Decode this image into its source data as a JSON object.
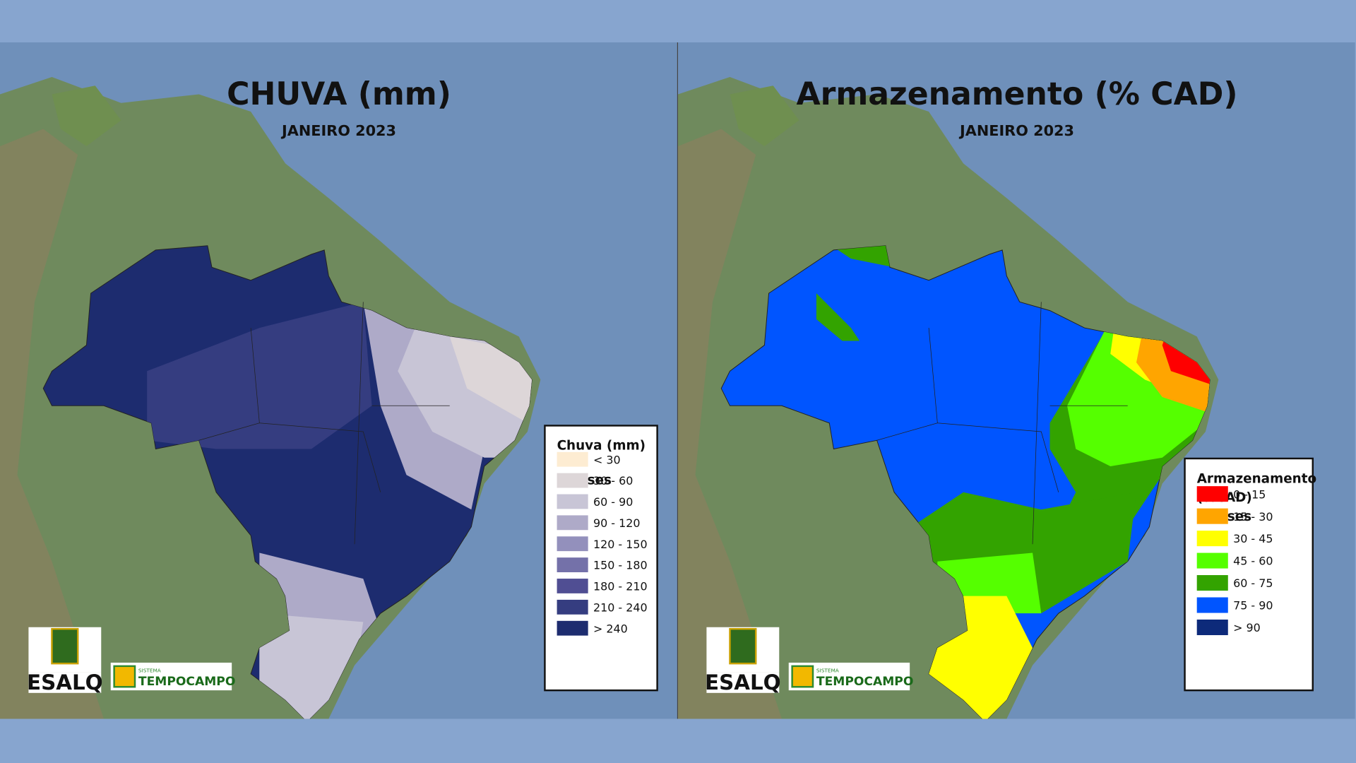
{
  "panels": [
    {
      "title": "CHUVA (mm)",
      "subtitle": "JANEIRO 2023",
      "legend": {
        "title": "Chuva (mm)",
        "subtitle": "Classes",
        "items": [
          {
            "label": "< 30",
            "color": "#fdecd2"
          },
          {
            "label": "30 - 60",
            "color": "#ddd6d8"
          },
          {
            "label": "60 - 90",
            "color": "#c8c5d6"
          },
          {
            "label": "90 - 120",
            "color": "#aeaac8"
          },
          {
            "label": "120 - 150",
            "color": "#9390bc"
          },
          {
            "label": "150 - 180",
            "color": "#7471a9"
          },
          {
            "label": "180 - 210",
            "color": "#504e93"
          },
          {
            "label": "210 - 240",
            "color": "#353d80"
          },
          {
            "label": "> 240",
            "color": "#1d2c6f"
          }
        ]
      }
    },
    {
      "title": "Armazenamento (% CAD)",
      "subtitle": "JANEIRO 2023",
      "legend": {
        "title": "Armazenamento (%CAD)",
        "subtitle": "Classes",
        "items": [
          {
            "label": "0 - 15",
            "color": "#ff0000"
          },
          {
            "label": "15 - 30",
            "color": "#ffa500"
          },
          {
            "label": "30 - 45",
            "color": "#ffff00"
          },
          {
            "label": "45 - 60",
            "color": "#55ff00"
          },
          {
            "label": "60 - 75",
            "color": "#33a300"
          },
          {
            "label": "75 - 90",
            "color": "#0055ff"
          },
          {
            "label": "> 90",
            "color": "#0d2a7a"
          }
        ]
      }
    }
  ],
  "logos": {
    "esalq": "ESALQ",
    "sistema": "SISTEMA",
    "tempocampo": "TEMPOCAMPO"
  }
}
